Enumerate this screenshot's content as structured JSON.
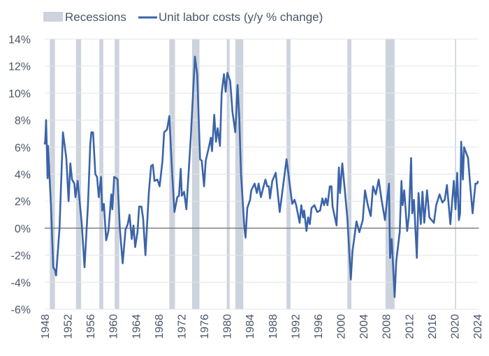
{
  "chart_data": {
    "type": "line",
    "title": "",
    "xlabel": "",
    "ylabel": "",
    "legend_position": "top-left",
    "grid": true,
    "xlim": [
      1948,
      2024.3
    ],
    "ylim": [
      -6,
      14
    ],
    "x_ticks": [
      "1948",
      "1952",
      "1956",
      "1960",
      "1964",
      "1968",
      "1972",
      "1976",
      "1980",
      "1984",
      "1988",
      "1992",
      "1996",
      "2000",
      "2004",
      "2008",
      "2012",
      "2016",
      "2020",
      "2024"
    ],
    "y_ticks": [
      "14%",
      "12%",
      "10%",
      "8%",
      "6%",
      "4%",
      "2%",
      "0%",
      "-2%",
      "-4%",
      "-6%"
    ],
    "y_tick_values": [
      14,
      12,
      10,
      8,
      6,
      4,
      2,
      0,
      -2,
      -4,
      -6
    ],
    "colors": {
      "line": "#3b64a8",
      "recession": "#cdd3dc",
      "grid": "#e1e4e9",
      "zero_line": "#808080"
    },
    "legend": [
      {
        "label": "Recessions",
        "kind": "band"
      },
      {
        "label": "Unit labor costs (y/y % change)",
        "kind": "line"
      }
    ],
    "recessions": [
      [
        1948.9,
        1949.8
      ],
      [
        1953.5,
        1954.4
      ],
      [
        1957.6,
        1958.3
      ],
      [
        1960.3,
        1961.1
      ],
      [
        1969.9,
        1970.9
      ],
      [
        1973.9,
        1975.2
      ],
      [
        1980.0,
        1980.5
      ],
      [
        1981.5,
        1982.9
      ],
      [
        1990.5,
        1991.2
      ],
      [
        2001.2,
        2001.9
      ],
      [
        2007.9,
        2009.5
      ],
      [
        2020.1,
        2020.3
      ]
    ],
    "series": [
      {
        "name": "Unit labor costs (y/y % change)",
        "points": [
          [
            1948.0,
            6.2
          ],
          [
            1948.1,
            6.5
          ],
          [
            1948.25,
            8.0
          ],
          [
            1948.35,
            6.2
          ],
          [
            1948.5,
            3.7
          ],
          [
            1948.6,
            6.1
          ],
          [
            1948.85,
            3.8
          ],
          [
            1949.1,
            1.7
          ],
          [
            1949.5,
            -2.9
          ],
          [
            1949.8,
            -3.1
          ],
          [
            1950.0,
            -3.5
          ],
          [
            1950.6,
            0
          ],
          [
            1951.2,
            7.1
          ],
          [
            1951.8,
            5.2
          ],
          [
            1952.2,
            2.0
          ],
          [
            1952.5,
            4.8
          ],
          [
            1952.8,
            3.6
          ],
          [
            1953.2,
            3.3
          ],
          [
            1953.4,
            2.3
          ],
          [
            1953.8,
            3.5
          ],
          [
            1954.5,
            0.4
          ],
          [
            1955.0,
            -2.9
          ],
          [
            1955.6,
            1.7
          ],
          [
            1956.0,
            6.2
          ],
          [
            1956.2,
            7.1
          ],
          [
            1956.5,
            7.1
          ],
          [
            1956.9,
            4.0
          ],
          [
            1957.2,
            3.8
          ],
          [
            1957.5,
            2.3
          ],
          [
            1957.9,
            3.8
          ],
          [
            1958.1,
            1.3
          ],
          [
            1958.4,
            1.8
          ],
          [
            1958.8,
            -0.9
          ],
          [
            1959.2,
            -0.2
          ],
          [
            1959.5,
            1.4
          ],
          [
            1959.7,
            2.5
          ],
          [
            1959.9,
            1.4
          ],
          [
            1960.2,
            3.8
          ],
          [
            1960.6,
            3.7
          ],
          [
            1960.8,
            3.6
          ],
          [
            1961.2,
            0
          ],
          [
            1961.7,
            -2.6
          ],
          [
            1962.2,
            -0.1
          ],
          [
            1962.6,
            0.3
          ],
          [
            1962.9,
            1.0
          ],
          [
            1963.3,
            -0.8
          ],
          [
            1963.6,
            0.2
          ],
          [
            1963.9,
            -1.4
          ],
          [
            1964.3,
            -0.3
          ],
          [
            1964.6,
            1.6
          ],
          [
            1965.0,
            1.6
          ],
          [
            1965.3,
            0.7
          ],
          [
            1965.7,
            -2.0
          ],
          [
            1966.3,
            2.6
          ],
          [
            1966.7,
            4.6
          ],
          [
            1967.0,
            4.7
          ],
          [
            1967.3,
            3.5
          ],
          [
            1967.8,
            3.6
          ],
          [
            1968.2,
            3.1
          ],
          [
            1968.7,
            5.0
          ],
          [
            1969.0,
            7.1
          ],
          [
            1969.5,
            7.3
          ],
          [
            1969.9,
            8.3
          ],
          [
            1970.4,
            4.1
          ],
          [
            1970.8,
            1.2
          ],
          [
            1971.3,
            2.3
          ],
          [
            1971.6,
            2.4
          ],
          [
            1971.9,
            4.4
          ],
          [
            1972.1,
            2.4
          ],
          [
            1972.5,
            2.7
          ],
          [
            1972.9,
            1.4
          ],
          [
            1973.7,
            6.9
          ],
          [
            1974.4,
            12.7
          ],
          [
            1974.8,
            11.4
          ],
          [
            1975.3,
            5.1
          ],
          [
            1975.6,
            5.0
          ],
          [
            1976.0,
            3.1
          ],
          [
            1976.3,
            5.0
          ],
          [
            1976.8,
            5.9
          ],
          [
            1977.2,
            6.7
          ],
          [
            1977.4,
            5.7
          ],
          [
            1977.8,
            8.4
          ],
          [
            1978.1,
            6.4
          ],
          [
            1978.4,
            7.4
          ],
          [
            1978.8,
            6.1
          ],
          [
            1979.1,
            10.0
          ],
          [
            1979.5,
            11.4
          ],
          [
            1979.8,
            10.1
          ],
          [
            1980.1,
            11.5
          ],
          [
            1980.6,
            10.9
          ],
          [
            1981.0,
            8.6
          ],
          [
            1981.5,
            7.1
          ],
          [
            1981.9,
            10.6
          ],
          [
            1982.2,
            8.1
          ],
          [
            1982.5,
            4.0
          ],
          [
            1983.1,
            0
          ],
          [
            1983.3,
            -0.7
          ],
          [
            1983.6,
            1.5
          ],
          [
            1984.1,
            2.1
          ],
          [
            1984.3,
            2.8
          ],
          [
            1984.9,
            3.3
          ],
          [
            1985.3,
            2.6
          ],
          [
            1985.6,
            3.3
          ],
          [
            1986.0,
            2.3
          ],
          [
            1986.4,
            3.0
          ],
          [
            1986.8,
            3.6
          ],
          [
            1987.1,
            3.1
          ],
          [
            1987.4,
            3.1
          ],
          [
            1987.6,
            2.2
          ],
          [
            1988.0,
            3.5
          ],
          [
            1988.6,
            4.1
          ],
          [
            1989.3,
            1.2
          ],
          [
            1990.5,
            5.1
          ],
          [
            1991.5,
            1.8
          ],
          [
            1991.9,
            2.1
          ],
          [
            1992.2,
            1.7
          ],
          [
            1992.8,
            0.4
          ],
          [
            1993.1,
            1.7
          ],
          [
            1993.4,
            0.8
          ],
          [
            1993.6,
            1.3
          ],
          [
            1994.0,
            -0.2
          ],
          [
            1994.3,
            0.8
          ],
          [
            1994.6,
            0.3
          ],
          [
            1994.9,
            1.5
          ],
          [
            1995.4,
            1.7
          ],
          [
            1995.9,
            1.2
          ],
          [
            1996.4,
            1.3
          ],
          [
            1996.8,
            2.2
          ],
          [
            1997.1,
            1.7
          ],
          [
            1997.4,
            2.2
          ],
          [
            1997.7,
            1.7
          ],
          [
            1998.1,
            3.1
          ],
          [
            1998.4,
            3.1
          ],
          [
            1998.6,
            1.6
          ],
          [
            1999.3,
            0.2
          ],
          [
            1999.7,
            4.5
          ],
          [
            1999.9,
            2.6
          ],
          [
            2000.3,
            4.8
          ],
          [
            2000.8,
            2.6
          ],
          [
            2001.2,
            0.7
          ],
          [
            2001.8,
            -3.8
          ],
          [
            2002.1,
            -1.7
          ],
          [
            2002.8,
            0.5
          ],
          [
            2003.3,
            -0.3
          ],
          [
            2003.9,
            0.6
          ],
          [
            2004.3,
            2.8
          ],
          [
            2004.8,
            1.7
          ],
          [
            2005.3,
            0.9
          ],
          [
            2005.7,
            3.1
          ],
          [
            2006.2,
            2.5
          ],
          [
            2006.7,
            3.6
          ],
          [
            2007.2,
            2.1
          ],
          [
            2007.8,
            0.6
          ],
          [
            2008.0,
            1.4
          ],
          [
            2008.5,
            3.3
          ],
          [
            2008.7,
            -2.2
          ],
          [
            2009.0,
            -0.8
          ],
          [
            2009.5,
            -5.1
          ],
          [
            2009.8,
            -2.4
          ],
          [
            2010.4,
            -0.3
          ],
          [
            2010.7,
            3.5
          ],
          [
            2010.9,
            1.7
          ],
          [
            2011.2,
            2.8
          ],
          [
            2011.7,
            -0.2
          ],
          [
            2012.0,
            0.9
          ],
          [
            2012.4,
            5.2
          ],
          [
            2012.6,
            1.1
          ],
          [
            2012.9,
            2.1
          ],
          [
            2013.4,
            -2.2
          ],
          [
            2013.7,
            2.6
          ],
          [
            2014.1,
            0.3
          ],
          [
            2014.4,
            2.7
          ],
          [
            2014.7,
            0.4
          ],
          [
            2015.2,
            2.8
          ],
          [
            2015.6,
            0.8
          ],
          [
            2016.4,
            0.4
          ],
          [
            2016.8,
            1.7
          ],
          [
            2017.4,
            2.5
          ],
          [
            2017.9,
            1.9
          ],
          [
            2018.3,
            2.1
          ],
          [
            2018.7,
            3.2
          ],
          [
            2019.3,
            0.3
          ],
          [
            2019.9,
            3.5
          ],
          [
            2020.2,
            1.4
          ],
          [
            2020.5,
            4.1
          ],
          [
            2020.8,
            0.6
          ],
          [
            2021.0,
            1.1
          ],
          [
            2021.2,
            6.4
          ],
          [
            2021.5,
            3.6
          ],
          [
            2021.7,
            6.0
          ],
          [
            2022.4,
            5.2
          ],
          [
            2022.8,
            3.1
          ],
          [
            2023.2,
            1.1
          ],
          [
            2023.7,
            3.3
          ],
          [
            2024.0,
            3.3
          ],
          [
            2024.2,
            3.5
          ]
        ]
      }
    ]
  }
}
